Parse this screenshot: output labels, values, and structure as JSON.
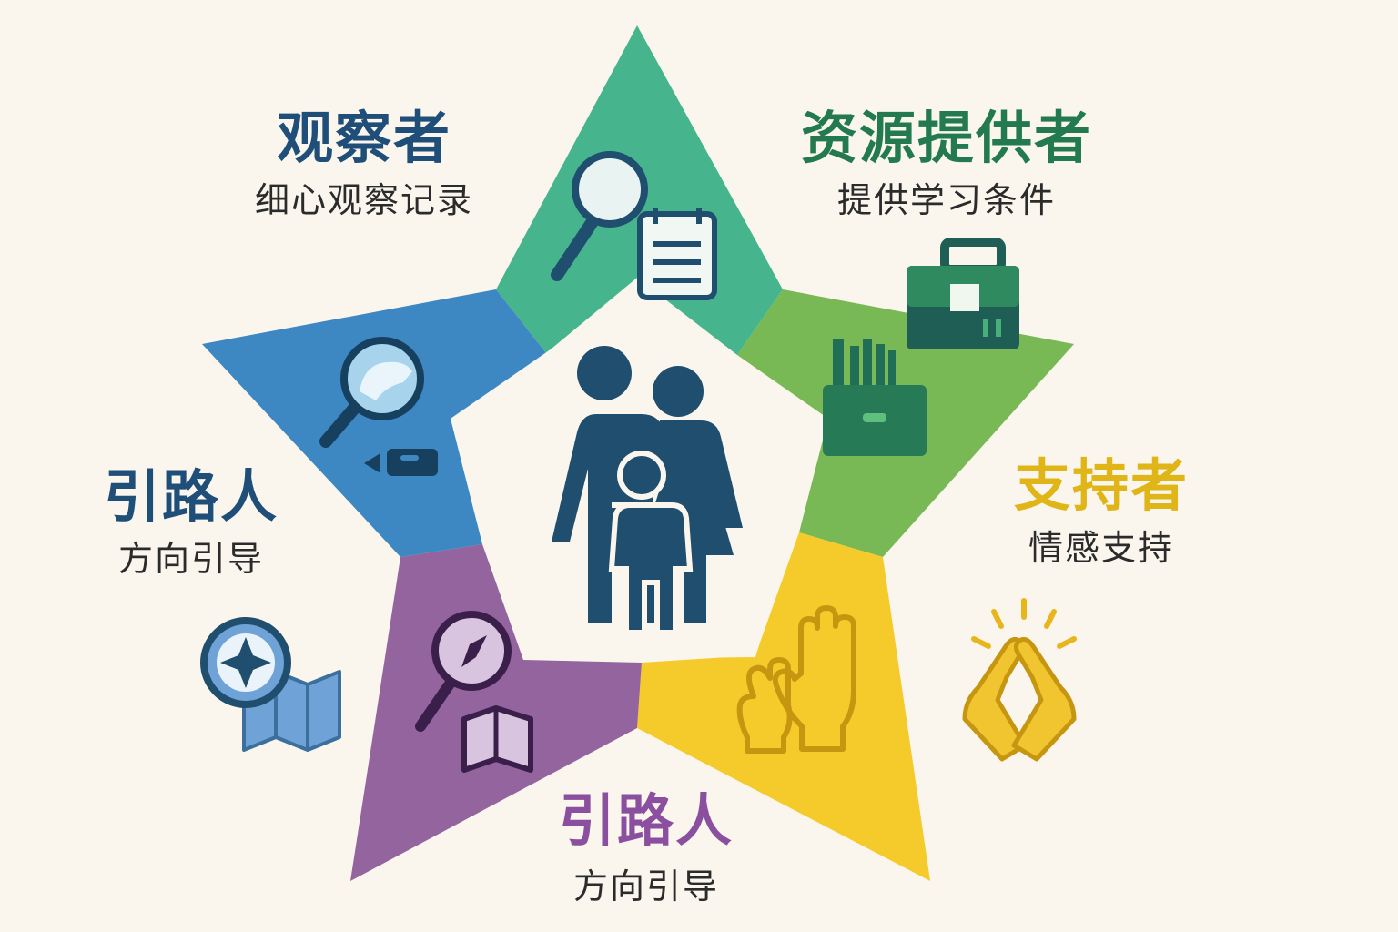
{
  "roles": {
    "observer": {
      "title": "观察者",
      "subtitle": "细心观察记录",
      "color": "#1f4e79"
    },
    "provider": {
      "title": "资源提供者",
      "subtitle": "提供学习条件",
      "color": "#237a4e"
    },
    "guide_left": {
      "title": "引路人",
      "subtitle": "方向引导",
      "color": "#1f4e79"
    },
    "supporter": {
      "title": "支持者",
      "subtitle": "情感支持",
      "color": "#e0b517"
    },
    "guide_bottom": {
      "title": "引路人",
      "subtitle": "方向引导",
      "color": "#8a4f9e"
    }
  },
  "star_colors": {
    "top": "#46b48d",
    "right": "#78b855",
    "bottom_right": "#f5cb2c",
    "bottom_left": "#94649e",
    "left": "#3d87c2"
  },
  "center": {
    "icon": "family-icon",
    "color": "#1f4e6e"
  },
  "icons": [
    "magnifier-notepad-icon",
    "toolbox-pencil-cup-icon",
    "clapping-hands-icon",
    "compass-book-icon",
    "magnifier-pencil-icon",
    "compass-map-icon",
    "high-five-icon"
  ]
}
